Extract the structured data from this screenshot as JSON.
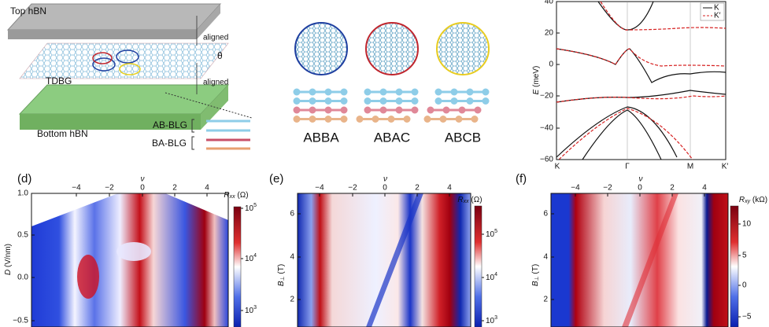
{
  "panel_a": {
    "top": "Top hBN",
    "aligned_1": "aligned",
    "theta": "θ",
    "middle": "TDBG",
    "aligned_2": "aligned",
    "bottom": "Bottom hBN",
    "blg_1": "AB-BLG",
    "blg_2": "BA-BLG"
  },
  "panel_b": {
    "stackings": [
      "ABBA",
      "ABAC",
      "ABCB"
    ]
  },
  "panel_c": {
    "ylabel": {
      "symbol": "E",
      "unit": " (meV)"
    },
    "yticks": [
      "40",
      "20",
      "0",
      "−20",
      "−40",
      "−60"
    ],
    "xticks": [
      "K",
      "Γ",
      "M",
      "K′"
    ],
    "legend": [
      "K",
      "K′"
    ]
  },
  "panel_d": {
    "label": "(d)",
    "top_axis": "ν",
    "xticks": [
      "−4",
      "−2",
      "0",
      "2",
      "4"
    ],
    "ylabel": {
      "symbol": "D",
      "sub": "",
      "unit": " (V/nm)"
    },
    "yticks": [
      "1.0",
      "0.5",
      "0.0",
      "−0.5"
    ],
    "colorbar": {
      "symbol": "R",
      "sub": "xx",
      "unit": " (Ω)",
      "ticks": [
        {
          "base": "10",
          "exp": "5"
        },
        {
          "base": "10",
          "exp": "4"
        },
        {
          "base": "10",
          "exp": "3"
        }
      ]
    }
  },
  "panel_e": {
    "label": "(e)",
    "top_axis": "ν",
    "xticks": [
      "−4",
      "−2",
      "0",
      "2",
      "4"
    ],
    "ylabel": {
      "symbol": "B",
      "sub": "⊥",
      "unit": " (T)"
    },
    "yticks": [
      "6",
      "4",
      "2"
    ],
    "colorbar": {
      "symbol": "R",
      "sub": "xx",
      "unit": " (Ω)",
      "ticks": [
        {
          "base": "10",
          "exp": "5"
        },
        {
          "base": "10",
          "exp": "4"
        },
        {
          "base": "10",
          "exp": "3"
        }
      ]
    }
  },
  "panel_f": {
    "label": "(f)",
    "top_axis": "ν",
    "xticks": [
      "−4",
      "−2",
      "0",
      "2",
      "4"
    ],
    "ylabel": {
      "symbol": "B",
      "sub": "⊥",
      "unit": " (T)"
    },
    "yticks": [
      "6",
      "4",
      "2"
    ],
    "colorbar": {
      "symbol": "R",
      "sub": "xy",
      "unit": " (kΩ)",
      "ticks": [
        "10",
        "5",
        "0",
        "−5"
      ]
    }
  }
}
